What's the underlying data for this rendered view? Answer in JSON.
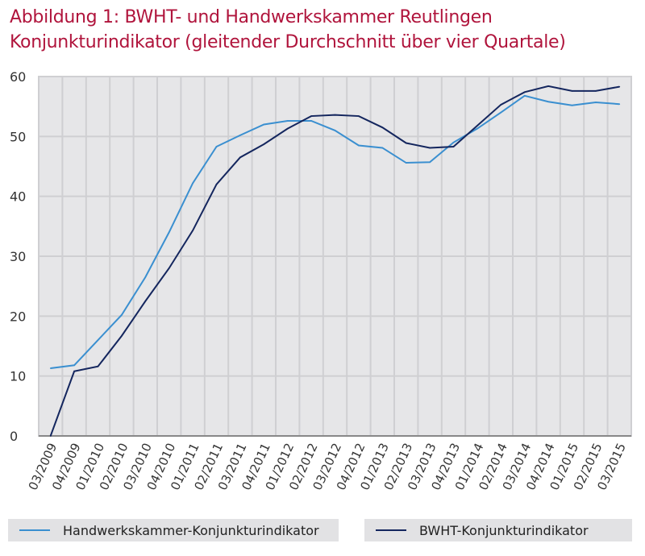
{
  "title_lines": [
    "Abbildung 1: BWHT- und Handwerkskammer  Reutlingen",
    "Konjunkturindikator (gleitender Durchschnitt über vier Quartale)"
  ],
  "chart_data": {
    "type": "line",
    "title": "Abbildung 1: BWHT- und Handwerkskammer Reutlingen Konjunkturindikator (gleitender Durchschnitt über vier Quartale)",
    "xlabel": "",
    "ylabel": "",
    "ylim": [
      0,
      60
    ],
    "yticks": [
      0,
      10,
      20,
      30,
      40,
      50,
      60
    ],
    "grid": true,
    "legend_position": "bottom",
    "categories": [
      "03/2009",
      "04/2009",
      "01/2010",
      "02/2010",
      "03/2010",
      "04/2010",
      "01/2011",
      "02/2011",
      "03/2011",
      "04/2011",
      "01/2012",
      "02/2012",
      "03/2012",
      "04/2012",
      "01/2013",
      "02/2013",
      "03/2013",
      "04/2013",
      "01/2014",
      "02/2014",
      "03/2014",
      "04/2014",
      "01/2015",
      "02/2015",
      "03/2015"
    ],
    "series": [
      {
        "name": "Handwerkskammer-Konjunkturindikator",
        "color": "#3a8fd0",
        "values": [
          11.3,
          11.8,
          16,
          20.2,
          26.5,
          34,
          42.2,
          48.3,
          50.2,
          52,
          52.6,
          52.6,
          51,
          48.5,
          48.1,
          45.6,
          45.7,
          49,
          51.3,
          54,
          56.8,
          55.8,
          55.2,
          55.7,
          55.4
        ]
      },
      {
        "name": "BWHT-Konjunkturindikator",
        "color": "#14265e",
        "values": [
          0,
          10.8,
          11.6,
          16.7,
          22.5,
          28,
          34.3,
          42,
          46.5,
          48.7,
          51.3,
          53.4,
          53.6,
          53.4,
          51.5,
          48.9,
          48.1,
          48.3,
          51.8,
          55.3,
          57.4,
          58.4,
          57.6,
          57.6,
          58.3
        ]
      }
    ]
  }
}
